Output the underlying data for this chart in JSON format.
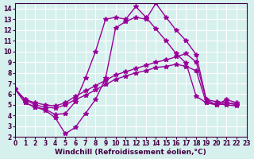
{
  "xlabel": "Windchill (Refroidissement éolien,°C)",
  "xlim": [
    0,
    23
  ],
  "ylim": [
    2,
    14.5
  ],
  "xticks": [
    0,
    1,
    2,
    3,
    4,
    5,
    6,
    7,
    8,
    9,
    10,
    11,
    12,
    13,
    14,
    15,
    16,
    17,
    18,
    19,
    20,
    21,
    22,
    23
  ],
  "yticks": [
    2,
    3,
    4,
    5,
    6,
    7,
    8,
    9,
    10,
    11,
    12,
    13,
    14
  ],
  "background_color": "#d6f0ee",
  "grid_color": "#ffffff",
  "line_color": "#990099",
  "line1_x": [
    0,
    1,
    2,
    3,
    4,
    5,
    6,
    7,
    8,
    9,
    10,
    11,
    12,
    13,
    14,
    15,
    16,
    17,
    18,
    19,
    20,
    21,
    22
  ],
  "line1_y": [
    6.5,
    5.2,
    4.8,
    4.5,
    3.8,
    2.3,
    2.9,
    4.2,
    5.5,
    7.5,
    12.2,
    12.8,
    13.2,
    13.0,
    14.5,
    13.2,
    12.0,
    11.0,
    9.7,
    5.5,
    5.0,
    5.5,
    5.2
  ],
  "line2_x": [
    0,
    1,
    2,
    3,
    4,
    5,
    6,
    7,
    8,
    9,
    10,
    11,
    12,
    13,
    14,
    15,
    16,
    17,
    18,
    19,
    20,
    21,
    22
  ],
  "line2_y": [
    6.5,
    5.5,
    5.2,
    5.0,
    4.9,
    5.2,
    5.8,
    6.3,
    6.8,
    7.3,
    7.8,
    8.1,
    8.4,
    8.7,
    9.0,
    9.2,
    9.5,
    9.8,
    9.0,
    5.5,
    5.3,
    5.2,
    5.1
  ],
  "line3_x": [
    0,
    1,
    2,
    3,
    4,
    5,
    6,
    7,
    8,
    9,
    10,
    11,
    12,
    13,
    14,
    15,
    16,
    17,
    18,
    19,
    20,
    21,
    22
  ],
  "line3_y": [
    6.5,
    5.5,
    5.0,
    4.8,
    4.7,
    5.0,
    5.5,
    5.9,
    6.4,
    6.9,
    7.4,
    7.7,
    8.0,
    8.2,
    8.5,
    8.6,
    8.8,
    8.6,
    8.2,
    5.2,
    5.1,
    5.0,
    4.9
  ],
  "line4_x": [
    0,
    1,
    2,
    3,
    4,
    5,
    6,
    7,
    8,
    9,
    10,
    11,
    12,
    13,
    14,
    15,
    16,
    17,
    18,
    19,
    20,
    21,
    22
  ],
  "line4_y": [
    6.5,
    5.2,
    4.8,
    4.6,
    4.1,
    4.2,
    5.3,
    7.5,
    10.0,
    13.0,
    13.2,
    13.0,
    14.2,
    13.2,
    12.1,
    11.0,
    9.8,
    8.9,
    5.8,
    5.2,
    5.0,
    5.2,
    5.0
  ],
  "marker": "*",
  "markersize": 4,
  "linewidth": 1.0,
  "tick_fontsize": 5.5,
  "label_fontsize": 6.5
}
